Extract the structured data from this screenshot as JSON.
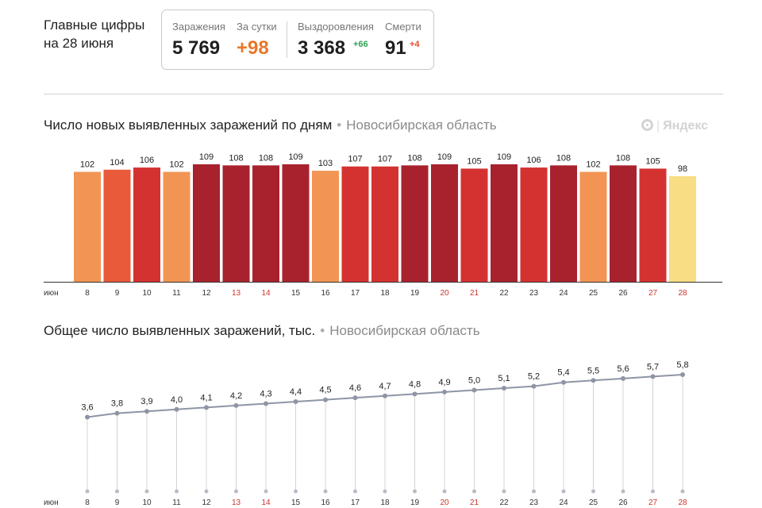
{
  "header": {
    "title_line1": "Главные цифры",
    "title_line2": "на 28 июня"
  },
  "stats": {
    "infections_label": "Заражения",
    "infections_value": "5 769",
    "per_day_label": "За сутки",
    "per_day_value": "+98",
    "recoveries_label": "Выздоровления",
    "recoveries_value": "3 368",
    "recoveries_delta": "+66",
    "deaths_label": "Смерти",
    "deaths_value": "91",
    "deaths_delta": "+4"
  },
  "brand": {
    "name": "Яндекс"
  },
  "colors": {
    "accent_orange": "#e9772b",
    "delta_green": "#2fa352",
    "delta_red": "#e34b2d",
    "weekend_tick": "#d0342c",
    "bar_shades": [
      "#f29554",
      "#e85a3a",
      "#d43230",
      "#a8222e",
      "#f8dd84"
    ]
  },
  "chart_data": [
    {
      "type": "bar",
      "title": "Число новых выявленных заражений по дням",
      "subtitle": "Новосибирская область",
      "month_label": "июн",
      "categories": [
        "8",
        "9",
        "10",
        "11",
        "12",
        "13",
        "14",
        "15",
        "16",
        "17",
        "18",
        "19",
        "20",
        "21",
        "22",
        "23",
        "24",
        "25",
        "26",
        "27",
        "28"
      ],
      "values": [
        102,
        104,
        106,
        102,
        109,
        108,
        108,
        109,
        103,
        107,
        107,
        108,
        109,
        105,
        109,
        106,
        108,
        102,
        108,
        105,
        98
      ],
      "weekend_categories": [
        "13",
        "14",
        "20",
        "21",
        "27",
        "28"
      ],
      "ylim": [
        0,
        110
      ],
      "grid": false
    },
    {
      "type": "line",
      "title": "Общее число выявленных заражений, тыс.",
      "subtitle": "Новосибирская область",
      "month_label": "июн",
      "categories": [
        "8",
        "9",
        "10",
        "11",
        "12",
        "13",
        "14",
        "15",
        "16",
        "17",
        "18",
        "19",
        "20",
        "21",
        "22",
        "23",
        "24",
        "25",
        "26",
        "27",
        "28"
      ],
      "values": [
        3.6,
        3.8,
        3.9,
        4.0,
        4.1,
        4.2,
        4.3,
        4.4,
        4.5,
        4.6,
        4.7,
        4.8,
        4.9,
        5.0,
        5.1,
        5.2,
        5.4,
        5.5,
        5.6,
        5.7,
        5.8
      ],
      "value_labels": [
        "3,6",
        "3,8",
        "3,9",
        "4,0",
        "4,1",
        "4,2",
        "4,3",
        "4,4",
        "4,5",
        "4,6",
        "4,7",
        "4,8",
        "4,9",
        "5,0",
        "5,1",
        "5,2",
        "5,4",
        "5,5",
        "5,6",
        "5,7",
        "5,8"
      ],
      "weekend_categories": [
        "13",
        "14",
        "20",
        "21",
        "27",
        "28"
      ],
      "ylim": [
        0,
        5.8
      ],
      "grid": false
    }
  ]
}
